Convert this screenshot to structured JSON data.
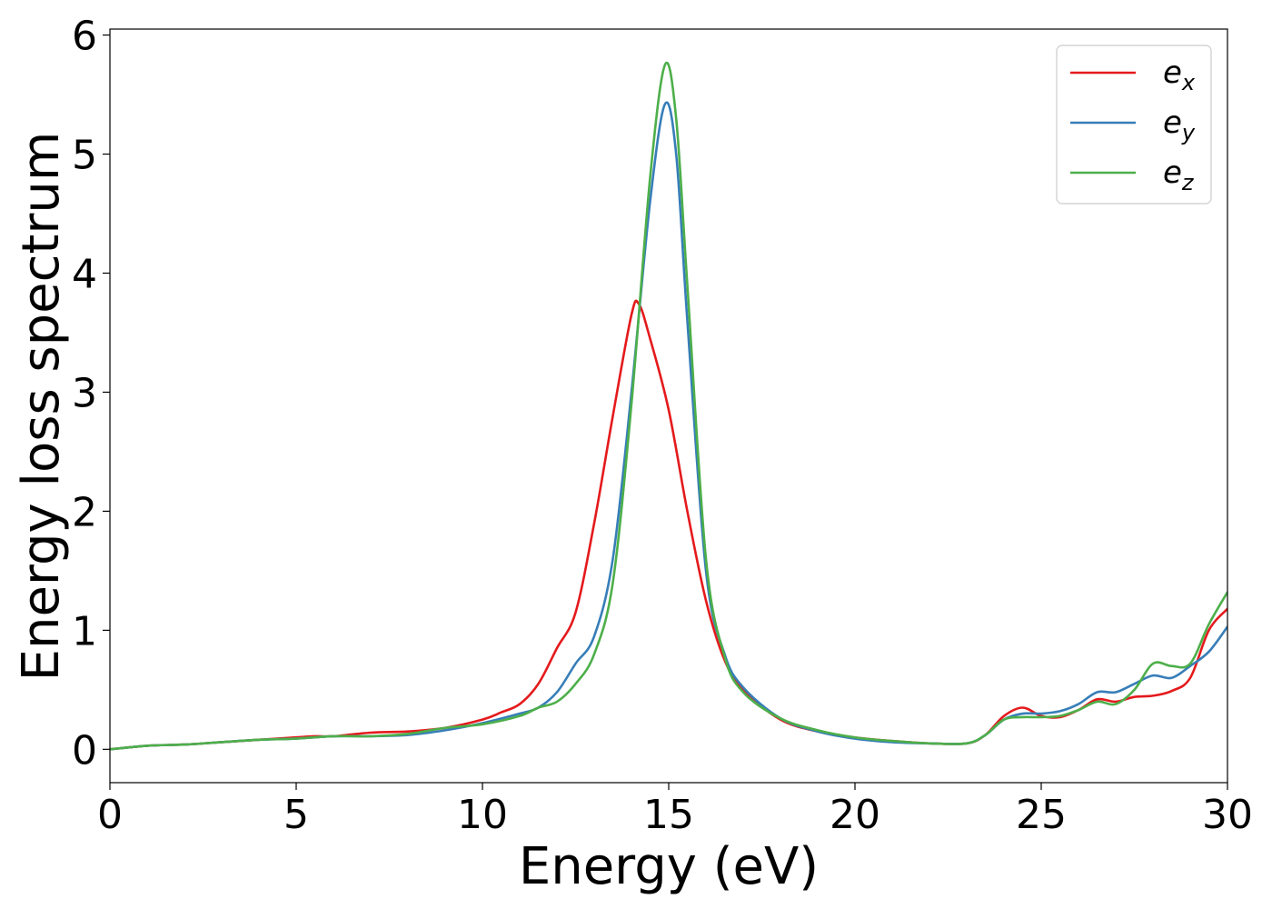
{
  "chart_data": {
    "type": "line",
    "title": "",
    "xlabel": "Energy (eV)",
    "ylabel": "Energy loss spectrum",
    "xlim": [
      0,
      30
    ],
    "ylim": [
      -0.28,
      6.05
    ],
    "xticks": [
      0,
      5,
      10,
      15,
      20,
      25,
      30
    ],
    "yticks": [
      0,
      1,
      2,
      3,
      4,
      5,
      6
    ],
    "grid": false,
    "legend_position": "top-right",
    "series": [
      {
        "name": "e_x",
        "label_main": "e",
        "label_sub": "x",
        "color": "#e41a1c",
        "points": [
          [
            0,
            0
          ],
          [
            1,
            0.03
          ],
          [
            2,
            0.04
          ],
          [
            3,
            0.06
          ],
          [
            4,
            0.08
          ],
          [
            5,
            0.1
          ],
          [
            5.5,
            0.11
          ],
          [
            6,
            0.11
          ],
          [
            7,
            0.14
          ],
          [
            8,
            0.15
          ],
          [
            9,
            0.18
          ],
          [
            10,
            0.25
          ],
          [
            10.5,
            0.31
          ],
          [
            11,
            0.38
          ],
          [
            11.5,
            0.55
          ],
          [
            12,
            0.85
          ],
          [
            12.5,
            1.15
          ],
          [
            13,
            1.9
          ],
          [
            13.5,
            2.8
          ],
          [
            14,
            3.65
          ],
          [
            14.2,
            3.74
          ],
          [
            14.5,
            3.45
          ],
          [
            15,
            2.85
          ],
          [
            15.5,
            2.0
          ],
          [
            16,
            1.25
          ],
          [
            16.5,
            0.75
          ],
          [
            17,
            0.5
          ],
          [
            18,
            0.25
          ],
          [
            19,
            0.15
          ],
          [
            20,
            0.1
          ],
          [
            21,
            0.07
          ],
          [
            22,
            0.05
          ],
          [
            23,
            0.05
          ],
          [
            23.5,
            0.12
          ],
          [
            24,
            0.28
          ],
          [
            24.5,
            0.35
          ],
          [
            25,
            0.28
          ],
          [
            25.5,
            0.27
          ],
          [
            26,
            0.33
          ],
          [
            26.5,
            0.42
          ],
          [
            27,
            0.4
          ],
          [
            27.5,
            0.44
          ],
          [
            28,
            0.45
          ],
          [
            28.5,
            0.49
          ],
          [
            29,
            0.6
          ],
          [
            29.5,
            1.0
          ],
          [
            30,
            1.18
          ]
        ]
      },
      {
        "name": "e_y",
        "label_main": "e",
        "label_sub": "y",
        "color": "#377eb8",
        "points": [
          [
            0,
            0
          ],
          [
            1,
            0.03
          ],
          [
            2,
            0.04
          ],
          [
            3,
            0.06
          ],
          [
            4,
            0.08
          ],
          [
            5,
            0.09
          ],
          [
            6,
            0.11
          ],
          [
            7,
            0.11
          ],
          [
            8,
            0.12
          ],
          [
            9,
            0.16
          ],
          [
            10,
            0.22
          ],
          [
            11,
            0.3
          ],
          [
            11.5,
            0.35
          ],
          [
            12,
            0.48
          ],
          [
            12.5,
            0.72
          ],
          [
            13,
            0.95
          ],
          [
            13.5,
            1.6
          ],
          [
            14,
            3.0
          ],
          [
            14.5,
            4.6
          ],
          [
            14.9,
            5.42
          ],
          [
            15.2,
            5.0
          ],
          [
            15.5,
            3.6
          ],
          [
            16,
            1.5
          ],
          [
            16.5,
            0.8
          ],
          [
            17,
            0.52
          ],
          [
            18,
            0.26
          ],
          [
            19,
            0.15
          ],
          [
            20,
            0.09
          ],
          [
            21,
            0.06
          ],
          [
            22,
            0.05
          ],
          [
            23,
            0.05
          ],
          [
            23.5,
            0.12
          ],
          [
            24,
            0.25
          ],
          [
            24.5,
            0.3
          ],
          [
            25,
            0.3
          ],
          [
            25.5,
            0.32
          ],
          [
            26,
            0.38
          ],
          [
            26.5,
            0.48
          ],
          [
            27,
            0.48
          ],
          [
            27.5,
            0.55
          ],
          [
            28,
            0.62
          ],
          [
            28.5,
            0.6
          ],
          [
            29,
            0.7
          ],
          [
            29.5,
            0.82
          ],
          [
            30,
            1.03
          ]
        ]
      },
      {
        "name": "e_z",
        "label_main": "e",
        "label_sub": "z",
        "color": "#4daf4a",
        "points": [
          [
            0,
            0
          ],
          [
            1,
            0.03
          ],
          [
            2,
            0.04
          ],
          [
            3,
            0.06
          ],
          [
            4,
            0.08
          ],
          [
            5,
            0.09
          ],
          [
            6,
            0.11
          ],
          [
            7,
            0.11
          ],
          [
            8,
            0.13
          ],
          [
            9,
            0.18
          ],
          [
            10,
            0.21
          ],
          [
            11,
            0.28
          ],
          [
            11.5,
            0.35
          ],
          [
            12,
            0.4
          ],
          [
            12.5,
            0.55
          ],
          [
            13,
            0.8
          ],
          [
            13.5,
            1.4
          ],
          [
            14,
            2.9
          ],
          [
            14.5,
            4.8
          ],
          [
            14.9,
            5.75
          ],
          [
            15.2,
            5.3
          ],
          [
            15.5,
            3.9
          ],
          [
            16,
            1.6
          ],
          [
            16.5,
            0.78
          ],
          [
            17,
            0.48
          ],
          [
            18,
            0.26
          ],
          [
            19,
            0.16
          ],
          [
            20,
            0.1
          ],
          [
            21,
            0.07
          ],
          [
            22,
            0.05
          ],
          [
            23,
            0.05
          ],
          [
            23.5,
            0.12
          ],
          [
            24,
            0.25
          ],
          [
            24.5,
            0.27
          ],
          [
            25,
            0.27
          ],
          [
            25.5,
            0.28
          ],
          [
            26,
            0.33
          ],
          [
            26.5,
            0.4
          ],
          [
            27,
            0.38
          ],
          [
            27.5,
            0.5
          ],
          [
            28,
            0.72
          ],
          [
            28.5,
            0.7
          ],
          [
            29,
            0.72
          ],
          [
            29.5,
            1.05
          ],
          [
            30,
            1.32
          ]
        ]
      }
    ]
  }
}
